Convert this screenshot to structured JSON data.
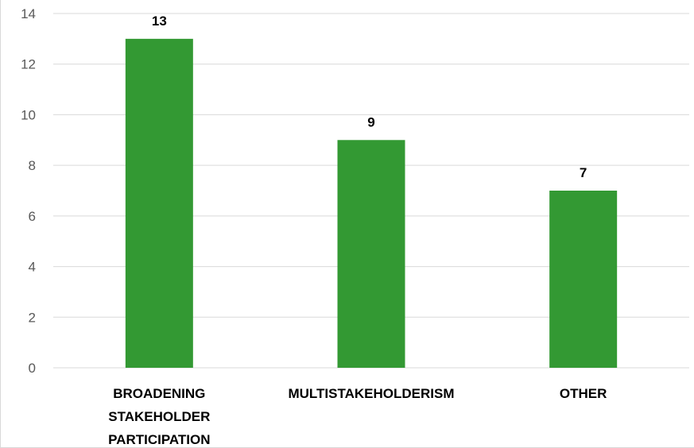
{
  "chart_data": {
    "type": "bar",
    "title": "",
    "xlabel": "",
    "ylabel": "",
    "categories": [
      [
        "BROADENING",
        "STAKEHOLDER",
        "PARTICIPATION"
      ],
      [
        "MULTISTAKEHOLDERISM"
      ],
      [
        "OTHER"
      ]
    ],
    "values": [
      13,
      9,
      7
    ],
    "data_labels": [
      "13",
      "9",
      "7"
    ],
    "ylim": [
      0,
      14
    ],
    "yticks": [
      0,
      2,
      4,
      6,
      8,
      10,
      12,
      14
    ],
    "grid": true,
    "legend": "none",
    "colors": {
      "bar": "#339933",
      "grid": "#d9d9d9",
      "tick_text": "#595959",
      "label_text": "#000000"
    }
  }
}
